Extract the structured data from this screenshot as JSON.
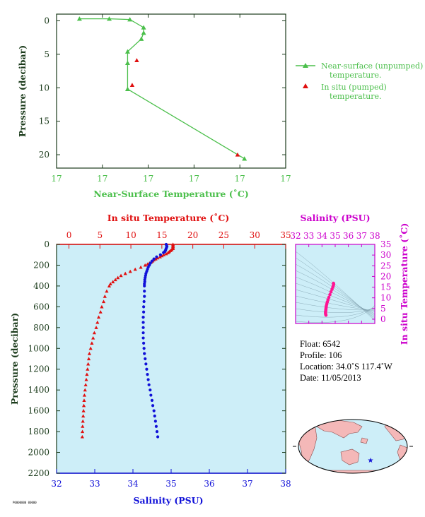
{
  "colors": {
    "green": "#4bbf4b",
    "red": "#e01010",
    "blue": "#1010d8",
    "magenta": "#cc00cc",
    "pink": "#ff1493",
    "panel_bg": "#cdeef8",
    "axis_dark": "#1a3a1a",
    "land": "#f4b8b8",
    "ocean": "#cdeef8"
  },
  "chart_data": [
    {
      "type": "line",
      "ylabel": "Pressure (decibar)",
      "xlabel": "Near-Surface Temperature (˚C)",
      "x_tick_labels": [
        "17",
        "17",
        "17",
        "17",
        "17",
        "17"
      ],
      "y_ticks": [
        0,
        5,
        10,
        15,
        20
      ],
      "ylim": [
        22,
        -1
      ],
      "xlim": [
        16.5,
        17.5
      ],
      "legend": "right",
      "series": [
        {
          "name": "Near-surface (unpumped) temperature.",
          "marker": "triangle",
          "line": true,
          "points": [
            {
              "x": 16.6,
              "y": -0.3
            },
            {
              "x": 16.73,
              "y": -0.3
            },
            {
              "x": 16.82,
              "y": -0.2
            },
            {
              "x": 16.88,
              "y": 1.0
            },
            {
              "x": 16.88,
              "y": 1.8
            },
            {
              "x": 16.87,
              "y": 2.7
            },
            {
              "x": 16.81,
              "y": 4.6
            },
            {
              "x": 16.81,
              "y": 6.3
            },
            {
              "x": 16.81,
              "y": 10.2
            },
            {
              "x": 17.32,
              "y": 20.6
            }
          ]
        },
        {
          "name": "In situ (pumped) temperature.",
          "marker": "triangle",
          "line": false,
          "points": [
            {
              "x": 16.85,
              "y": 5.9
            },
            {
              "x": 16.83,
              "y": 9.6
            },
            {
              "x": 17.29,
              "y": 20.0
            }
          ]
        }
      ]
    },
    {
      "type": "scatter",
      "ylabel": "Pressure (decibar)",
      "y_ticks": [
        0,
        200,
        400,
        600,
        800,
        1000,
        1200,
        1400,
        1600,
        1800,
        2000,
        2200
      ],
      "ylim": [
        2200,
        0
      ],
      "top_axis": {
        "label": "In situ Temperature (˚C)",
        "ticks": [
          0,
          5,
          10,
          15,
          20,
          25,
          30,
          35
        ],
        "range": [
          -2,
          35
        ]
      },
      "bottom_axis": {
        "label": "Salinity (PSU)",
        "ticks": [
          32,
          33,
          34,
          35,
          36,
          37,
          38
        ],
        "range": [
          32,
          38
        ]
      },
      "series": [
        {
          "name": "In situ Temperature (˚C)",
          "axis": "top",
          "marker": "triangle",
          "pressure": [
            0,
            10,
            20,
            30,
            40,
            50,
            60,
            70,
            80,
            90,
            100,
            110,
            120,
            130,
            140,
            150,
            160,
            170,
            180,
            190,
            200,
            220,
            240,
            260,
            280,
            300,
            320,
            340,
            360,
            380,
            400,
            450,
            500,
            550,
            600,
            650,
            700,
            750,
            800,
            850,
            900,
            950,
            1000,
            1050,
            1100,
            1150,
            1200,
            1250,
            1300,
            1350,
            1400,
            1450,
            1500,
            1550,
            1600,
            1650,
            1700,
            1750,
            1800,
            1850
          ],
          "values": [
            16.8,
            16.8,
            16.8,
            16.8,
            16.8,
            16.6,
            16.4,
            16.2,
            16.0,
            15.7,
            15.3,
            15.0,
            14.7,
            14.3,
            14.0,
            13.7,
            13.5,
            13.3,
            13.0,
            12.7,
            12.3,
            11.6,
            10.7,
            9.9,
            9.1,
            8.4,
            7.9,
            7.5,
            7.1,
            6.7,
            6.5,
            6.1,
            5.8,
            5.6,
            5.3,
            5.1,
            4.8,
            4.6,
            4.4,
            4.1,
            3.9,
            3.7,
            3.5,
            3.3,
            3.2,
            3.1,
            3.0,
            2.9,
            2.8,
            2.7,
            2.6,
            2.5,
            2.45,
            2.4,
            2.35,
            2.3,
            2.25,
            2.2,
            2.18,
            2.15
          ]
        },
        {
          "name": "Salinity (PSU)",
          "axis": "bottom",
          "marker": "dot",
          "pressure": [
            0,
            10,
            20,
            30,
            40,
            50,
            60,
            70,
            80,
            100,
            120,
            140,
            160,
            180,
            200,
            220,
            240,
            260,
            280,
            300,
            320,
            340,
            360,
            380,
            400,
            450,
            500,
            550,
            600,
            650,
            700,
            750,
            800,
            850,
            900,
            950,
            1000,
            1050,
            1100,
            1150,
            1200,
            1250,
            1300,
            1350,
            1400,
            1450,
            1500,
            1550,
            1600,
            1650,
            1700,
            1750,
            1800,
            1850
          ],
          "values": [
            34.87,
            34.88,
            34.89,
            34.88,
            34.87,
            34.86,
            34.85,
            34.83,
            34.8,
            34.72,
            34.62,
            34.55,
            34.5,
            34.46,
            34.43,
            34.4,
            34.38,
            34.36,
            34.34,
            34.33,
            34.32,
            34.31,
            34.31,
            34.3,
            34.3,
            34.3,
            34.3,
            34.29,
            34.28,
            34.28,
            34.27,
            34.27,
            34.27,
            34.27,
            34.27,
            34.28,
            34.29,
            34.3,
            34.32,
            34.34,
            34.36,
            34.38,
            34.4,
            34.42,
            34.45,
            34.47,
            34.5,
            34.52,
            34.55,
            34.57,
            34.59,
            34.61,
            34.63,
            34.65
          ]
        }
      ]
    },
    {
      "type": "scatter",
      "title": "Salinity (PSU)",
      "ylabel": "In situ Temperature (˚C)",
      "x_ticks": [
        32,
        33,
        34,
        35,
        36,
        37,
        38
      ],
      "y_ticks": [
        0,
        5,
        10,
        15,
        20,
        25,
        30,
        35
      ],
      "xlim": [
        32,
        38
      ],
      "ylim": [
        -2,
        35
      ],
      "points": [
        {
          "x": 34.3,
          "y": 1.9
        },
        {
          "x": 34.28,
          "y": 2.3
        },
        {
          "x": 34.27,
          "y": 2.8
        },
        {
          "x": 34.27,
          "y": 3.3
        },
        {
          "x": 34.28,
          "y": 3.8
        },
        {
          "x": 34.29,
          "y": 4.3
        },
        {
          "x": 34.3,
          "y": 4.9
        },
        {
          "x": 34.31,
          "y": 5.5
        },
        {
          "x": 34.33,
          "y": 6.2
        },
        {
          "x": 34.36,
          "y": 7.0
        },
        {
          "x": 34.4,
          "y": 8.0
        },
        {
          "x": 34.45,
          "y": 9.0
        },
        {
          "x": 34.52,
          "y": 10.2
        },
        {
          "x": 34.6,
          "y": 11.5
        },
        {
          "x": 34.68,
          "y": 12.8
        },
        {
          "x": 34.76,
          "y": 14.0
        },
        {
          "x": 34.82,
          "y": 15.0
        },
        {
          "x": 34.86,
          "y": 15.8
        },
        {
          "x": 34.88,
          "y": 16.4
        },
        {
          "x": 34.87,
          "y": 16.8
        }
      ]
    }
  ],
  "info": {
    "float": "Float:  6542",
    "profile": "Profile:  106",
    "location": "Location:  34.0˚S  117.4˚W",
    "date": "Date:  11/05/2013"
  },
  "footer": "P0000000 00000"
}
